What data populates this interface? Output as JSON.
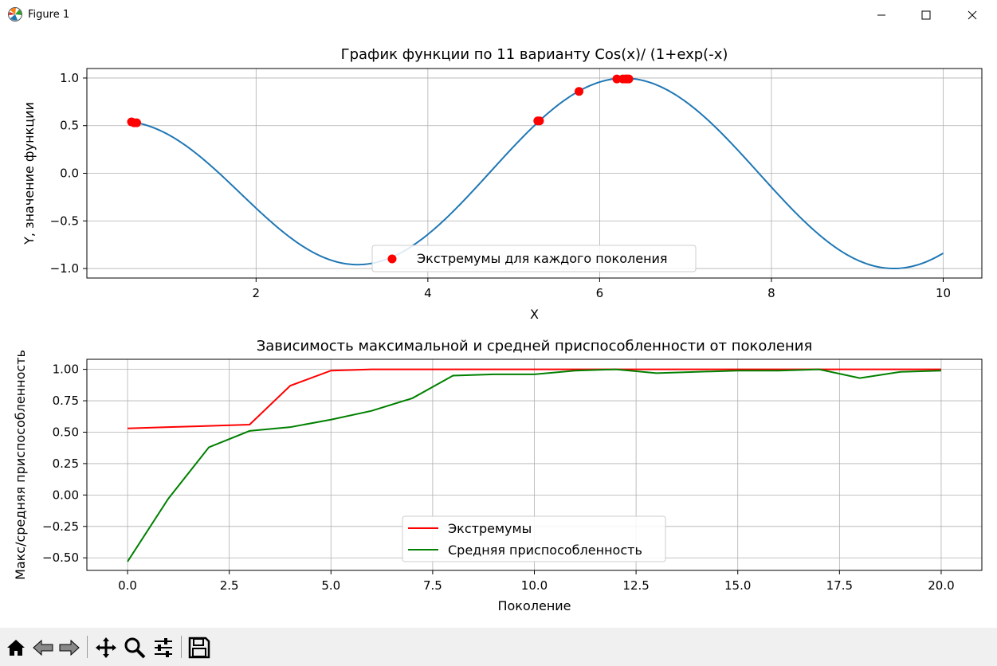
{
  "window": {
    "title": "Figure 1",
    "controls": [
      "minimize",
      "maximize",
      "close"
    ]
  },
  "toolbar": {
    "buttons": [
      "home-icon",
      "back-icon",
      "forward-icon",
      "pan-icon",
      "zoom-icon",
      "configure-subplots-icon",
      "save-icon"
    ]
  },
  "chart_data": [
    {
      "type": "line",
      "title": "График функции по 11 варианту Cos(x)/ (1+exp(-x)",
      "xlabel": "X",
      "ylabel": "Y, значение функции",
      "xlim": [
        0.03,
        10.45
      ],
      "ylim": [
        -1.1,
        1.1
      ],
      "xticks": [
        2,
        4,
        6,
        8,
        10
      ],
      "xtick_labels": [
        "2",
        "4",
        "6",
        "8",
        "10"
      ],
      "yticks": [
        1.0,
        0.5,
        0.0,
        -0.5,
        -1.0
      ],
      "ytick_labels": [
        "1.0",
        "0.5",
        "0.0",
        "−0.5",
        "−1.0"
      ],
      "grid": true,
      "legend_position": "lower center",
      "function_curve": {
        "expression": "cos(x)/(1+exp(-x))",
        "x_range": [
          0.5,
          10.0
        ],
        "color": "#1f77b4"
      },
      "scatter_series": {
        "name": "Экстремумы для каждого поколения",
        "color": "#ff0000",
        "x": [
          0.55,
          0.58,
          0.61,
          5.28,
          5.3,
          5.76,
          6.2,
          6.27,
          6.3,
          6.32,
          6.34
        ],
        "y": [
          0.54,
          0.53,
          0.53,
          0.55,
          0.55,
          0.86,
          0.99,
          0.99,
          0.99,
          0.99,
          0.99
        ]
      }
    },
    {
      "type": "line",
      "title": "Зависимость максимальной и средней приспособленности от поколения",
      "xlabel": "Поколение",
      "ylabel": "Макс/средняя приспособленность",
      "xlim": [
        -1,
        21
      ],
      "ylim": [
        -0.6,
        1.08
      ],
      "xticks": [
        0,
        2.5,
        5,
        7.5,
        10,
        12.5,
        15,
        17.5,
        20
      ],
      "xtick_labels": [
        "0.0",
        "2.5",
        "5.0",
        "7.5",
        "10.0",
        "12.5",
        "15.0",
        "17.5",
        "20.0"
      ],
      "yticks": [
        1.0,
        0.75,
        0.5,
        0.25,
        0.0,
        -0.25,
        -0.5
      ],
      "ytick_labels": [
        "1.00",
        "0.75",
        "0.50",
        "0.25",
        "0.00",
        "−0.25",
        "−0.50"
      ],
      "grid": true,
      "legend_position": "lower center",
      "x": [
        0,
        1,
        2,
        3,
        4,
        5,
        6,
        7,
        8,
        9,
        10,
        11,
        12,
        13,
        14,
        15,
        16,
        17,
        18,
        19,
        20
      ],
      "series": [
        {
          "name": "Экстремумы",
          "color": "#ff0000",
          "values": [
            0.53,
            0.54,
            0.55,
            0.56,
            0.87,
            0.99,
            1.0,
            1.0,
            1.0,
            1.0,
            1.0,
            1.0,
            1.0,
            1.0,
            1.0,
            1.0,
            1.0,
            1.0,
            1.0,
            1.0,
            1.0
          ]
        },
        {
          "name": "Средняя приспособленность",
          "color": "#008000",
          "values": [
            -0.53,
            -0.03,
            0.38,
            0.51,
            0.54,
            0.6,
            0.67,
            0.77,
            0.95,
            0.96,
            0.96,
            0.99,
            1.0,
            0.97,
            0.98,
            0.99,
            0.99,
            1.0,
            0.93,
            0.98,
            0.99
          ]
        }
      ]
    }
  ]
}
